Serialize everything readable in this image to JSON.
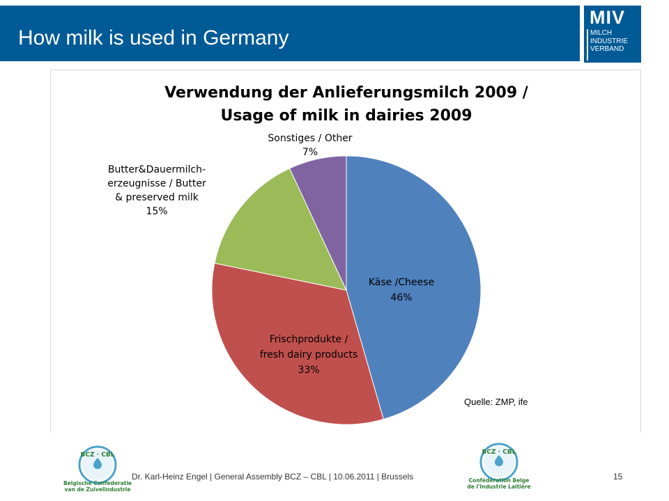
{
  "header": {
    "title": "How milk is used in Germany"
  },
  "logo": {
    "main": "MIV",
    "lines": [
      "MILCH",
      "INDUSTRIE",
      "VERBAND"
    ]
  },
  "colors": {
    "header_bg": "#005a96",
    "cheese": "#4f81bd",
    "fresh": "#c0504d",
    "butter": "#9bbb59",
    "other": "#8064a2"
  },
  "chart_data": {
    "type": "pie",
    "title": "Verwendung der Anlieferungsmilch 2009 / Usage of milk in dairies 2009",
    "title_lines": [
      "Verwendung der Anlieferungsmilch 2009 /",
      "Usage of milk in dairies 2009"
    ],
    "slices": [
      {
        "label_lines": [
          "Käse /Cheese"
        ],
        "label": "Käse /Cheese",
        "value": 46,
        "value_label": "46%",
        "color": "#4f81bd"
      },
      {
        "label_lines": [
          "Frischprodukte /",
          "fresh dairy products"
        ],
        "label": "Frischprodukte / fresh dairy products",
        "value": 33,
        "value_label": "33%",
        "color": "#c0504d"
      },
      {
        "label_lines": [
          "Butter&Dauermilch-",
          "erzeugnisse / Butter",
          "& preserved milk"
        ],
        "label": "Butter&Dauermilch-erzeugnisse / Butter & preserved milk",
        "value": 15,
        "value_label": "15%",
        "color": "#9bbb59"
      },
      {
        "label_lines": [
          "Sonstiges / Other"
        ],
        "label": "Sonstiges / Other",
        "value": 7,
        "value_label": "7%",
        "color": "#8064a2"
      }
    ],
    "legend": "none"
  },
  "source": "Quelle: ZMP, ife",
  "footer": {
    "text": "Dr. Karl-Heinz Engel | General Assembly BCZ – CBL | 10.06.2011 | Brussels",
    "page": "15"
  },
  "badges": {
    "left": {
      "mark": "BCZ · CBL",
      "caption_lines": [
        "Belgische Confederatie",
        "van de Zuivelindustrie"
      ]
    },
    "right": {
      "mark": "BCZ · CBL",
      "caption_lines": [
        "Confédération Belge",
        "de l'Industrie Laitière"
      ]
    }
  }
}
